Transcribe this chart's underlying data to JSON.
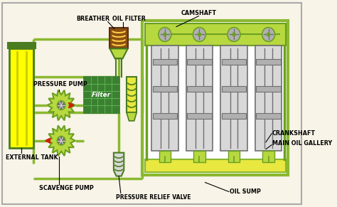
{
  "bg_color": "#f8f4e8",
  "border_color": "#999977",
  "green_dark": "#4a7c20",
  "green_light": "#8ab830",
  "green_fill": "#b8d840",
  "green_med": "#6aa020",
  "yellow_fill": "#ffff00",
  "yellow_light": "#e8e840",
  "gray_fill": "#b0b0b0",
  "gray_dark": "#707070",
  "gray_light": "#d8d8d8",
  "filter_green": "#3a8030",
  "red_arrow": "#cc2200",
  "brown_dark": "#5a3010",
  "brown_fill": "#8B5010",
  "labels": {
    "camshaft": "CAMSHAFT",
    "crankshaft": "CRANKSHAFT",
    "main_oil_gallery": "MAIN OIL GALLERY",
    "oil_sump": "OIL SUMP",
    "external_tank": "EXTERNAL TANK",
    "breather": "BREATHER",
    "oil_filter": "OIL FILTER",
    "pressure_pump": "PRESSURE PUMP",
    "filter": "Filter",
    "pressure_relief_valve": "PRESSURE RELIEF VALVE",
    "scavenge_pump": "SCAVENGE PUMP"
  }
}
